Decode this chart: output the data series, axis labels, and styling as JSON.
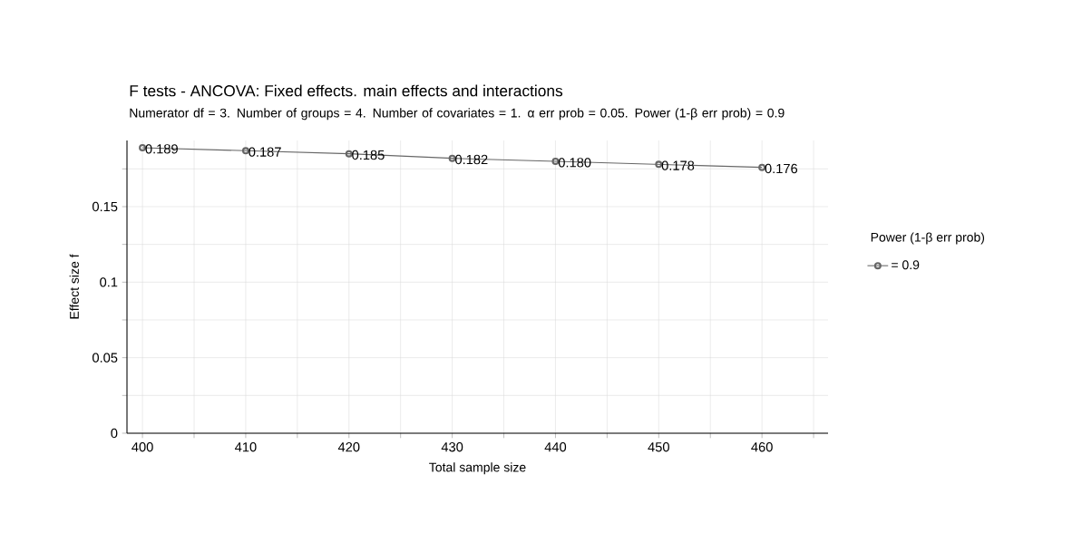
{
  "chart_data": {
    "type": "line",
    "title": "F tests - ANCOVA: Fixed effects. main effects and interactions",
    "subtitle": "Numerator df = 3. Number of groups = 4. Number of covariates = 1. α err prob = 0.05. Power (1-β err prob) = 0.9",
    "xlabel": "Total sample size",
    "ylabel": "Effect size f",
    "legend_title": "Power (1-β err prob)",
    "x": [
      400,
      410,
      420,
      430,
      440,
      450,
      460
    ],
    "series": [
      {
        "name": "= 0.9",
        "color": "#666666",
        "values": [
          0.189,
          0.187,
          0.185,
          0.182,
          0.18,
          0.178,
          0.176
        ],
        "value_labels": [
          "0.189",
          "0.187",
          "0.185",
          "0.182",
          "0.180",
          "0.178",
          "0.176"
        ]
      }
    ],
    "xlim": [
      398.5,
      466.4
    ],
    "ylim": [
      0,
      0.1938
    ],
    "xticks": [
      400,
      {
        "value": 405,
        "label": null
      },
      410,
      {
        "value": 415,
        "label": null
      },
      420,
      {
        "value": 425,
        "label": null
      },
      430,
      {
        "value": 435,
        "label": null
      },
      440,
      {
        "value": 445,
        "label": null
      },
      450,
      {
        "value": 455,
        "label": null
      },
      460,
      {
        "value": 465,
        "label": null
      }
    ],
    "yticks": [
      0,
      {
        "value": 0.025,
        "label": null
      },
      0.05,
      {
        "value": 0.075,
        "label": null
      },
      0.1,
      {
        "value": 0.125,
        "label": null
      },
      0.15,
      {
        "value": 0.175,
        "label": null
      }
    ],
    "grid": true,
    "legend": "right",
    "marker": "circle",
    "line_style": "solid"
  }
}
